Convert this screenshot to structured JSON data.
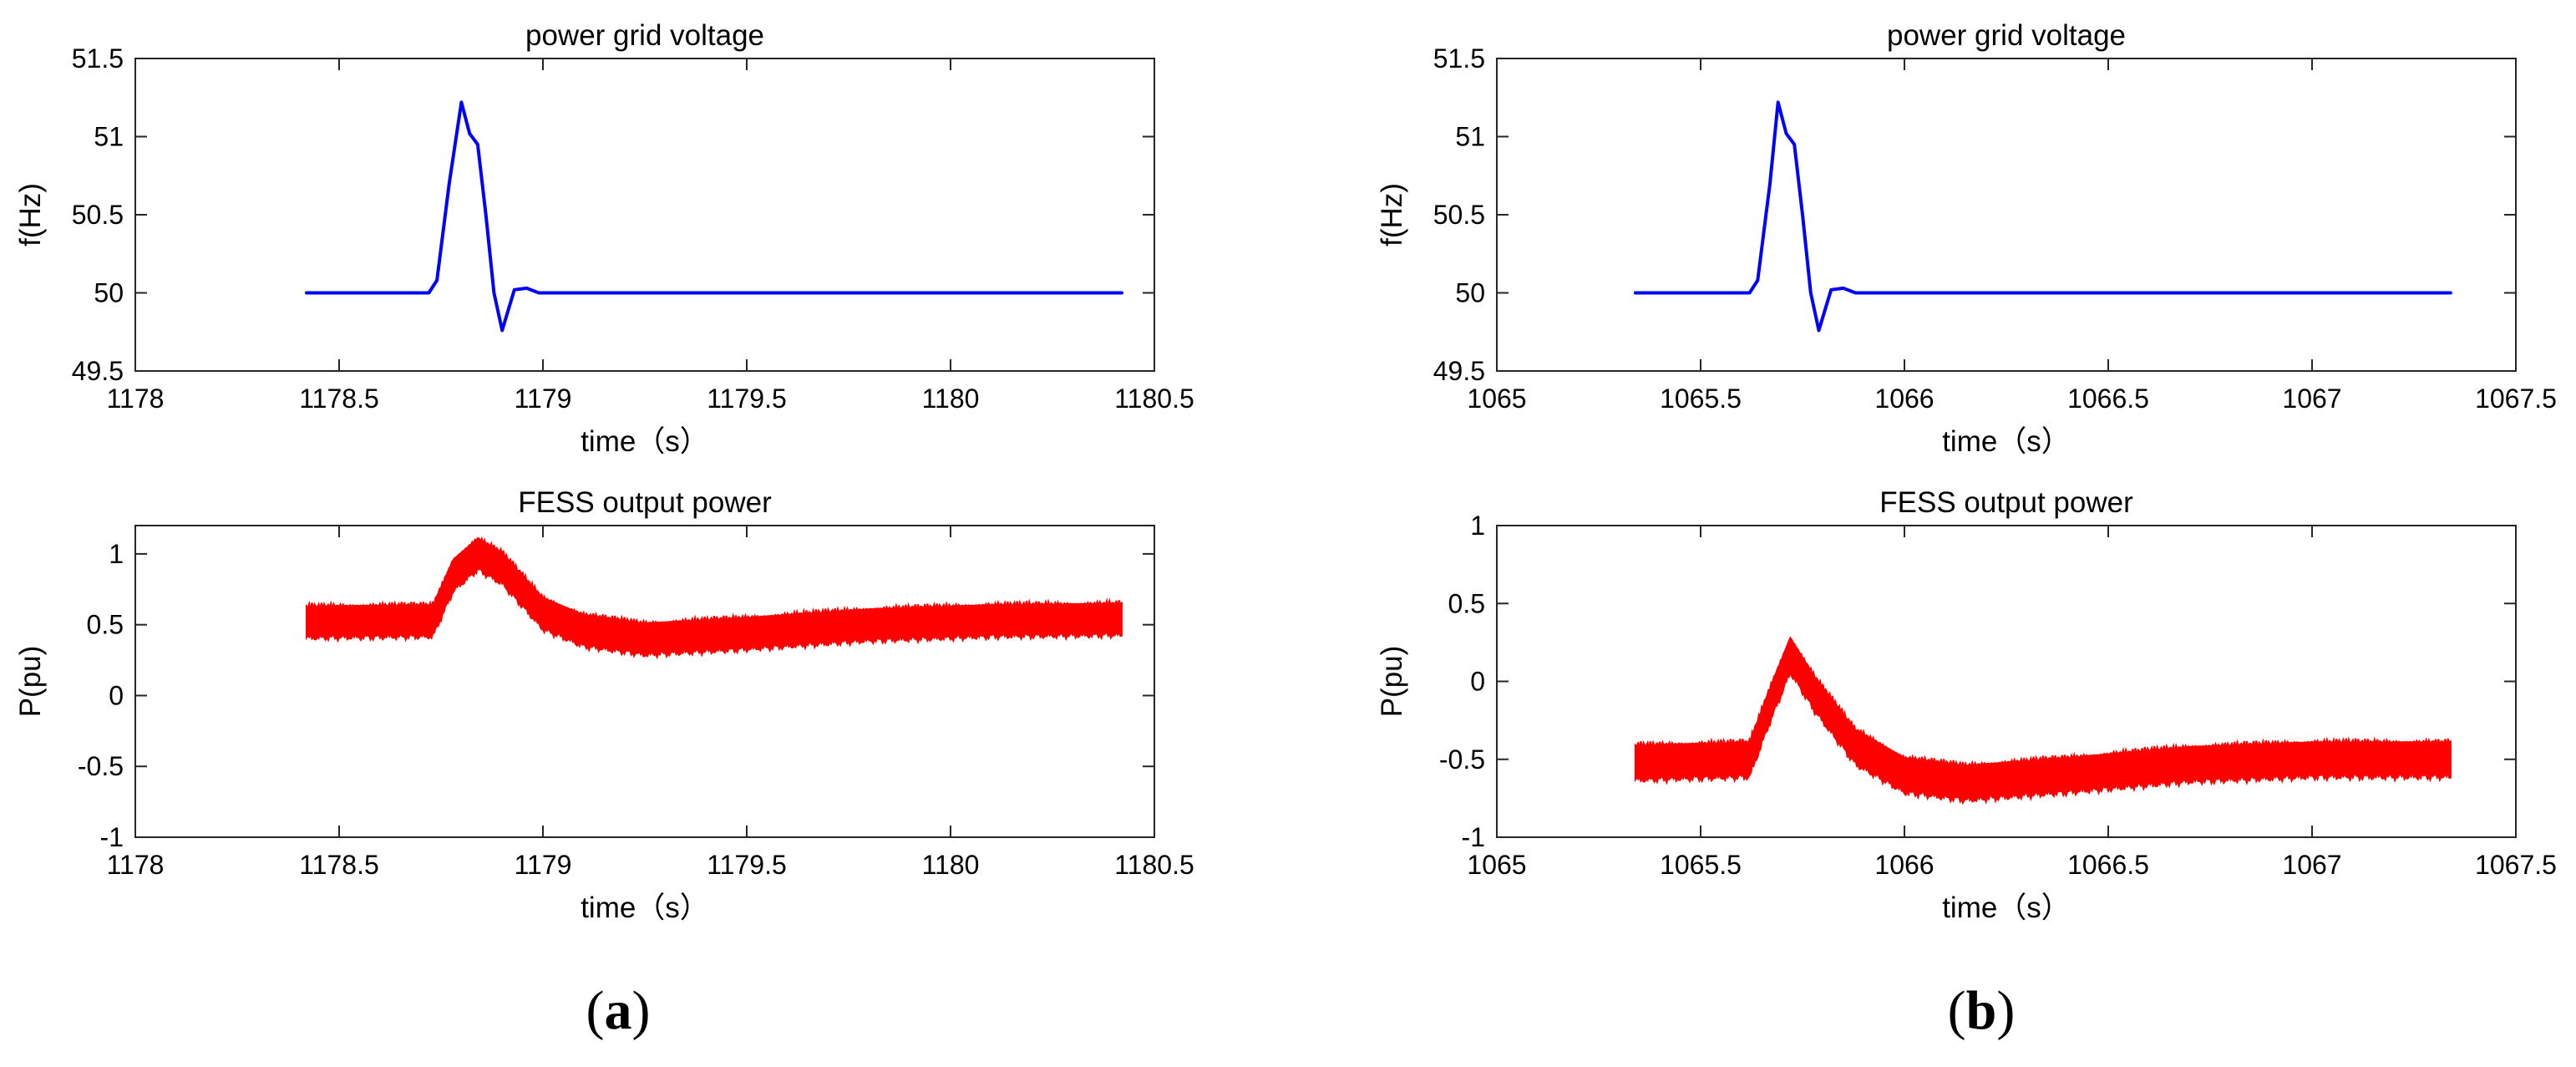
{
  "panel_labels": {
    "a": {
      "open": "(",
      "letter": "a",
      "close": ")"
    },
    "b": {
      "open": "(",
      "letter": "b",
      "close": ")"
    }
  },
  "colors": {
    "frequency": "#0000ff",
    "power": "#ff0000"
  },
  "chart_data": [
    {
      "type": "line",
      "panel": "a",
      "title": "power grid voltage",
      "xlabel": "time（s）",
      "ylabel": "f(Hz)",
      "xlim": [
        1178,
        1180.5
      ],
      "ylim": [
        49.5,
        51.5
      ],
      "xticks": [
        1178,
        1178.5,
        1179,
        1179.5,
        1180,
        1180.5
      ],
      "xtick_labels": [
        "1178",
        "1178.5",
        "1179",
        "1179.5",
        "1180",
        "1180.5"
      ],
      "yticks": [
        49.5,
        50,
        50.5,
        51,
        51.5
      ],
      "ytick_labels": [
        "49.5",
        "50",
        "50.5",
        "51",
        "51.5"
      ],
      "series": [
        {
          "color": "#0000ff",
          "x": [
            1178.42,
            1178.72,
            1178.74,
            1178.77,
            1178.8,
            1178.82,
            1178.84,
            1178.86,
            1178.88,
            1178.9,
            1178.93,
            1178.96,
            1178.99,
            1179.02,
            1180.42
          ],
          "y": [
            50,
            50,
            50.08,
            50.7,
            51.22,
            51.02,
            50.95,
            50.5,
            50.0,
            49.76,
            50.02,
            50.03,
            50.0,
            50,
            50
          ]
        }
      ]
    },
    {
      "type": "line",
      "panel": "a",
      "title": "FESS output power",
      "xlabel": "time（s）",
      "ylabel": "P(pu)",
      "xlim": [
        1178,
        1180.5
      ],
      "ylim": [
        -1,
        1.2
      ],
      "xticks": [
        1178,
        1178.5,
        1179,
        1179.5,
        1180,
        1180.5
      ],
      "xtick_labels": [
        "1178",
        "1178.5",
        "1179",
        "1179.5",
        "1180",
        "1180.5"
      ],
      "yticks": [
        -1,
        -0.5,
        0,
        0.5,
        1
      ],
      "ytick_labels": [
        "-1",
        "-0.5",
        "0",
        "0.5",
        "1"
      ],
      "band_width": 0.22,
      "series": [
        {
          "color": "#ff0000",
          "x": [
            1178.42,
            1178.73,
            1178.78,
            1178.84,
            1178.9,
            1179.0,
            1179.1,
            1179.25,
            1179.5,
            1179.8,
            1180.1,
            1180.42
          ],
          "y": [
            0.52,
            0.53,
            0.85,
            1.0,
            0.9,
            0.58,
            0.46,
            0.4,
            0.44,
            0.5,
            0.53,
            0.54
          ]
        }
      ]
    },
    {
      "type": "line",
      "panel": "b",
      "title": "power grid voltage",
      "xlabel": "time（s）",
      "ylabel": "f(Hz)",
      "xlim": [
        1065,
        1067.5
      ],
      "ylim": [
        49.5,
        51.5
      ],
      "xticks": [
        1065,
        1065.5,
        1066,
        1066.5,
        1067,
        1067.5
      ],
      "xtick_labels": [
        "1065",
        "1065.5",
        "1066",
        "1066.5",
        "1067",
        "1067.5"
      ],
      "yticks": [
        49.5,
        50,
        50.5,
        51,
        51.5
      ],
      "ytick_labels": [
        "49.5",
        "50",
        "50.5",
        "51",
        "51.5"
      ],
      "series": [
        {
          "color": "#0000ff",
          "x": [
            1065.34,
            1065.62,
            1065.64,
            1065.67,
            1065.69,
            1065.71,
            1065.73,
            1065.75,
            1065.77,
            1065.79,
            1065.82,
            1065.85,
            1065.88,
            1065.91,
            1067.34
          ],
          "y": [
            50,
            50,
            50.08,
            50.7,
            51.22,
            51.02,
            50.95,
            50.5,
            50.0,
            49.76,
            50.02,
            50.03,
            50.0,
            50,
            50
          ]
        }
      ]
    },
    {
      "type": "line",
      "panel": "b",
      "title": "FESS output power",
      "xlabel": "time（s）",
      "ylabel": "P(pu)",
      "xlim": [
        1065,
        1067.5
      ],
      "ylim": [
        -1,
        1
      ],
      "xticks": [
        1065,
        1065.5,
        1066,
        1066.5,
        1067,
        1067.5
      ],
      "xtick_labels": [
        "1065",
        "1065.5",
        "1066",
        "1066.5",
        "1067",
        "1067.5"
      ],
      "yticks": [
        -1,
        -0.5,
        0,
        0.5,
        1
      ],
      "ytick_labels": [
        "-1",
        "-0.5",
        "0",
        "0.5",
        "1"
      ],
      "band_width": 0.22,
      "series": [
        {
          "color": "#ff0000",
          "x": [
            1065.34,
            1065.62,
            1065.67,
            1065.72,
            1065.78,
            1065.88,
            1066.0,
            1066.15,
            1066.4,
            1066.7,
            1067.0,
            1067.34
          ],
          "y": [
            -0.52,
            -0.5,
            -0.15,
            0.17,
            -0.08,
            -0.42,
            -0.6,
            -0.65,
            -0.6,
            -0.53,
            -0.5,
            -0.5
          ]
        }
      ]
    }
  ]
}
